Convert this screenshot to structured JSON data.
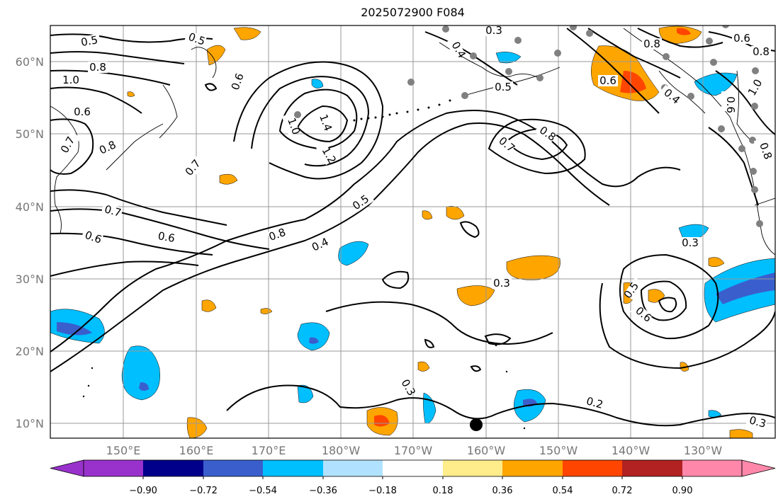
{
  "title": "2025072900 F084",
  "map": {
    "lat_labels": [
      "60°N",
      "50°N",
      "40°N",
      "30°N",
      "20°N",
      "10°N"
    ],
    "lon_labels": [
      "150°E",
      "160°E",
      "170°E",
      "180°W",
      "170°W",
      "160°W",
      "150°W",
      "140°W",
      "130°W"
    ],
    "contour_labels": [
      "0.5",
      "0.5",
      "0.8",
      "1.0",
      "0.6",
      "0.8",
      "0.7",
      "0.7",
      "0.6",
      "0.7",
      "0.6",
      "0.6",
      "1.0",
      "1.4",
      "1.2",
      "0.8",
      "0.5",
      "0.4",
      "0.3",
      "0.4",
      "0.5",
      "0.8",
      "0.7",
      "0.8",
      "0.6",
      "0.4",
      "0.6",
      "0.8",
      "1.0",
      "0.6",
      "0.8",
      "0.3",
      "0.3",
      "0.5",
      "0.6",
      "0.3",
      "0.2",
      "0.3"
    ]
  },
  "colorbar": {
    "tick_labels": [
      "−0.90",
      "−0.72",
      "−0.54",
      "−0.36",
      "−0.18",
      "0.18",
      "0.36",
      "0.54",
      "0.72",
      "0.90"
    ],
    "colors": [
      "#9932cc",
      "#00008b",
      "#3a5fcd",
      "#00bfff",
      "#b0e2ff",
      "#ffffff",
      "#ffec8b",
      "#ffa500",
      "#ff4500",
      "#b22222",
      "#ff88aa"
    ]
  }
}
